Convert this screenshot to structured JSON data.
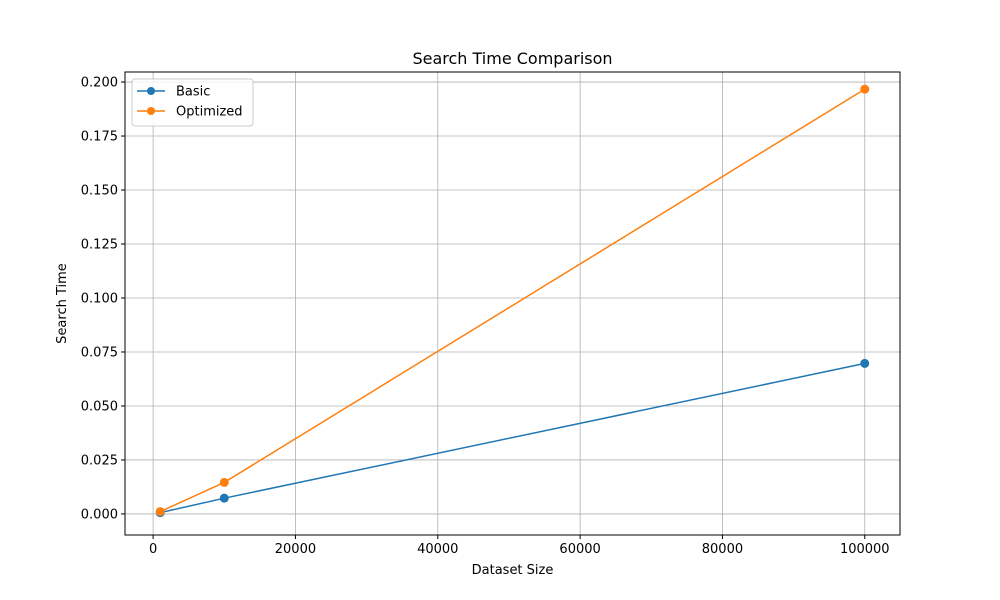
{
  "chart_data": {
    "type": "line",
    "title": "Search Time Comparison",
    "xlabel": "Dataset Size",
    "ylabel": "Search Time",
    "xlim": [
      -3950,
      104950
    ],
    "ylim": [
      -0.00975,
      0.20465
    ],
    "xticks": [
      0,
      20000,
      40000,
      60000,
      80000,
      100000
    ],
    "xtick_labels": [
      "0",
      "20000",
      "40000",
      "60000",
      "80000",
      "100000"
    ],
    "yticks": [
      0.0,
      0.025,
      0.05,
      0.075,
      0.1,
      0.125,
      0.15,
      0.175,
      0.2
    ],
    "ytick_labels": [
      "0.000",
      "0.025",
      "0.050",
      "0.075",
      "0.100",
      "0.125",
      "0.150",
      "0.175",
      "0.200"
    ],
    "grid": true,
    "legend_position": "top-left",
    "series": [
      {
        "name": "Basic",
        "color": "#1f77b4",
        "marker": "circle",
        "x": [
          1000,
          10000,
          100000
        ],
        "y": [
          0.0006,
          0.0073,
          0.0697
        ]
      },
      {
        "name": "Optimized",
        "color": "#ff7f0e",
        "marker": "circle",
        "x": [
          1000,
          10000,
          100000
        ],
        "y": [
          0.0011,
          0.0146,
          0.1967
        ]
      }
    ]
  }
}
